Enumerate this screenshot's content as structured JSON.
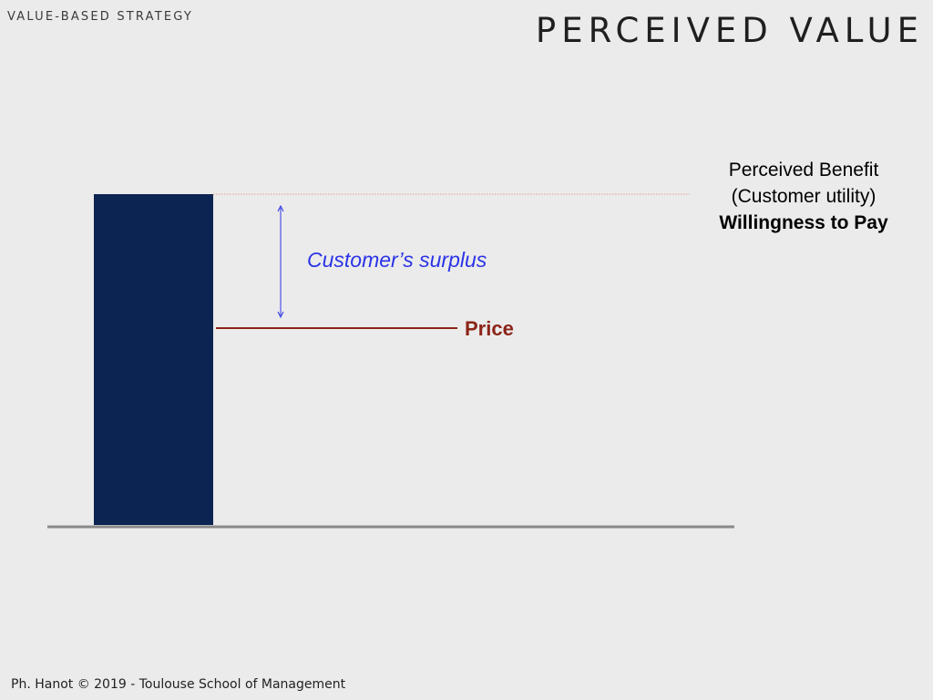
{
  "header": {
    "kicker": "VALUE-BASED STRATEGY",
    "title": "PERCEIVED VALUE"
  },
  "diagram": {
    "benefit_line1": "Perceived Benefit",
    "benefit_line2": "(Customer utility)",
    "benefit_line3": "Willingness to Pay",
    "surplus_label": "Customer’s surplus",
    "price_label": "Price",
    "colors": {
      "bar": "#0c2452",
      "surplus": "#2b34e6",
      "price": "#8c2418",
      "benefit_line": "#e0a090",
      "baseline": "#8a8a8a"
    }
  },
  "footer": {
    "credit": "Ph. Hanot © 2019  -  Toulouse School of Management"
  }
}
